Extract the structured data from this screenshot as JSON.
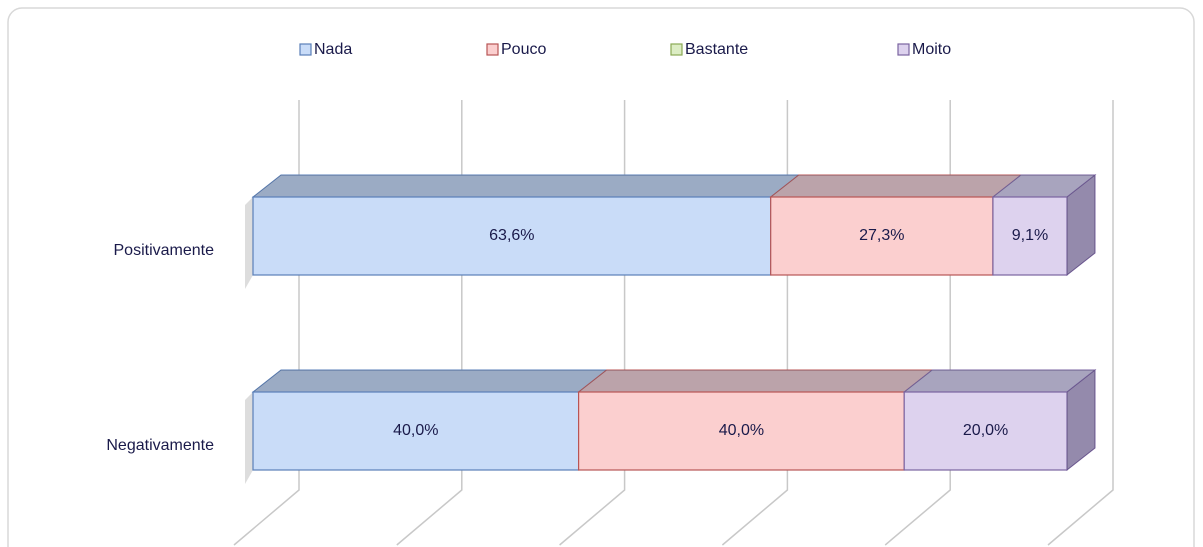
{
  "chart_data": {
    "type": "bar3d_stacked_horizontal",
    "categories": [
      "Positivamente",
      "Negativamente"
    ],
    "series": [
      {
        "name": "Nada",
        "color": "#c9dcf8",
        "values": [
          63.6,
          40.0
        ],
        "value_labels": [
          "63,6%",
          "40,0%"
        ]
      },
      {
        "name": "Pouco",
        "color": "#fbcfcf",
        "values": [
          27.3,
          40.0
        ],
        "value_labels": [
          "27,3%",
          "40,0%"
        ]
      },
      {
        "name": "Bastante",
        "color": "#dcedc4",
        "values": [
          null,
          null
        ],
        "value_labels": [
          null,
          null
        ]
      },
      {
        "name": "Moito",
        "color": "#ddd2ee",
        "values": [
          9.1,
          20.0
        ],
        "value_labels": [
          "9,1%",
          "20,0%"
        ]
      }
    ],
    "xlim": [
      0,
      100
    ],
    "xticks": [
      0,
      20,
      40,
      60,
      80,
      100
    ],
    "grid": true,
    "legend": "top"
  }
}
